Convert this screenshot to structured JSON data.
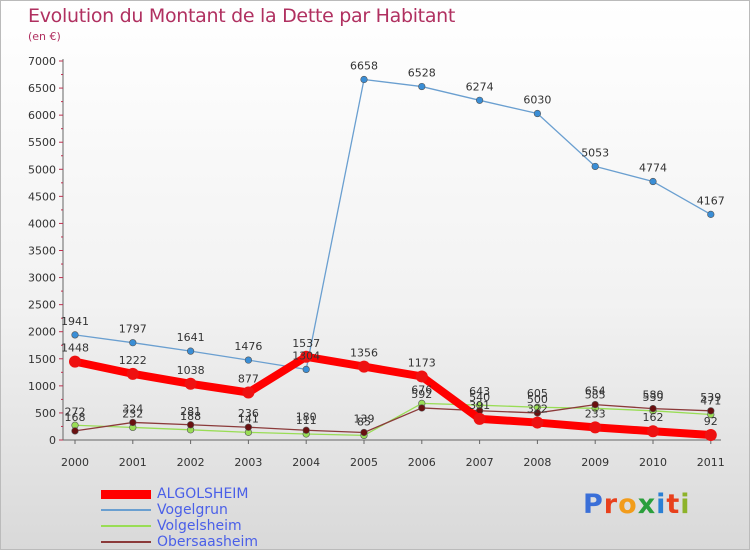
{
  "header": {
    "title": "Evolution du Montant de la Dette par Habitant",
    "subtitle": "(en €)"
  },
  "logo": {
    "text": "Proxiti",
    "letter_colors": [
      "#3a6fd8",
      "#e8401c",
      "#f29c1b",
      "#2a9f3c",
      "#2a7fd4",
      "#e8401c",
      "#8db32a"
    ]
  },
  "chart_data": {
    "type": "line",
    "title": "Evolution du Montant de la Dette par Habitant",
    "subtitle": "(en €)",
    "x": [
      "2000",
      "2001",
      "2002",
      "2003",
      "2004",
      "2005",
      "2006",
      "2007",
      "2008",
      "2009",
      "2010",
      "2011"
    ],
    "ylim": [
      0,
      7000
    ],
    "yticks": [
      0,
      500,
      1000,
      1500,
      2000,
      2500,
      3000,
      3500,
      4000,
      4500,
      5000,
      5500,
      6000,
      6500,
      7000
    ],
    "grid": false,
    "legend": "bottom-left",
    "series": [
      {
        "name": "ALGOLSHEIM",
        "color": "#ff0000",
        "marker_color": "#ee1111",
        "style": "thick",
        "values": [
          1448,
          1222,
          1038,
          877,
          1537,
          1356,
          1173,
          391,
          322,
          233,
          162,
          92
        ],
        "labels": [
          "1448",
          "1222",
          "1038",
          "877",
          "1537",
          "1356",
          "1173",
          "391",
          "322",
          "233",
          "162",
          "92"
        ]
      },
      {
        "name": "Vogelgrun",
        "color": "#6a9fd0",
        "marker_color": "#3a8ed6",
        "style": "thin",
        "values": [
          1941,
          1797,
          1641,
          1476,
          1304,
          6658,
          6528,
          6274,
          6030,
          5053,
          4774,
          4167
        ],
        "labels": [
          "1941",
          "1797",
          "1641",
          "1476",
          "1304",
          "6658",
          "6528",
          "6274",
          "6030",
          "5053",
          "4774",
          "4167"
        ]
      },
      {
        "name": "Volgelsheim",
        "color": "#99dd55",
        "marker_color": "#99dd55",
        "style": "thin",
        "values": [
          272,
          232,
          188,
          141,
          111,
          85,
          676,
          643,
          605,
          585,
          539,
          471
        ],
        "labels": [
          "272",
          "232",
          "188",
          "141",
          "111",
          "85",
          "676",
          "643",
          "605",
          "585",
          "539",
          "471"
        ]
      },
      {
        "name": "Obersaasheim",
        "color": "#8b3a3a",
        "marker_color": "#6a1010",
        "style": "thin",
        "values": [
          168,
          324,
          281,
          236,
          180,
          139,
          592,
          540,
          500,
          654,
          580,
          539
        ],
        "labels": [
          "168",
          "324",
          "281",
          "236",
          "180",
          "139",
          "592",
          "540",
          "500",
          "654",
          "580",
          "539"
        ]
      }
    ]
  }
}
